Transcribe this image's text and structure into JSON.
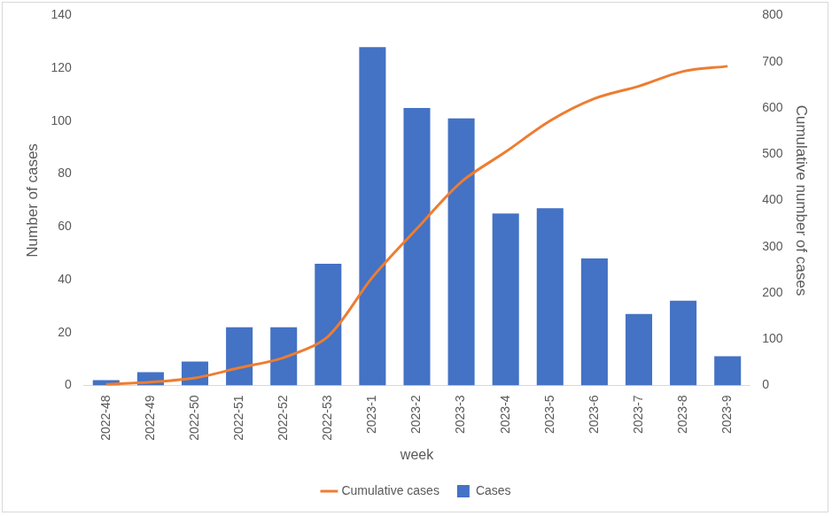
{
  "chart_data": {
    "type": "bar",
    "categories": [
      "2022-48",
      "2022-49",
      "2022-50",
      "2022-51",
      "2022-52",
      "2022-53",
      "2023-1",
      "2023-2",
      "2023-3",
      "2023-4",
      "2023-5",
      "2023-6",
      "2023-7",
      "2023-8",
      "2023-9"
    ],
    "series": [
      {
        "name": "Cases",
        "color": "#4472c4",
        "values": [
          2,
          5,
          9,
          22,
          22,
          46,
          128,
          105,
          101,
          65,
          67,
          48,
          27,
          32,
          11
        ]
      },
      {
        "name": "Cumulative cases",
        "type": "line",
        "axis": "y2",
        "color": "#ed7d31",
        "values": [
          2,
          7,
          16,
          38,
          60,
          106,
          234,
          339,
          440,
          505,
          572,
          620,
          647,
          679,
          690
        ]
      }
    ],
    "x_label": "week",
    "y_label": "Number of cases",
    "y2_label": "Cumulative number of cases",
    "ylim": [
      0,
      140
    ],
    "yticks": [
      0,
      20,
      40,
      60,
      80,
      100,
      120,
      140
    ],
    "y2lim": [
      0,
      800
    ],
    "y2ticks": [
      0,
      100,
      200,
      300,
      400,
      500,
      600,
      700,
      800
    ],
    "grid": false,
    "legend": "bottom"
  }
}
